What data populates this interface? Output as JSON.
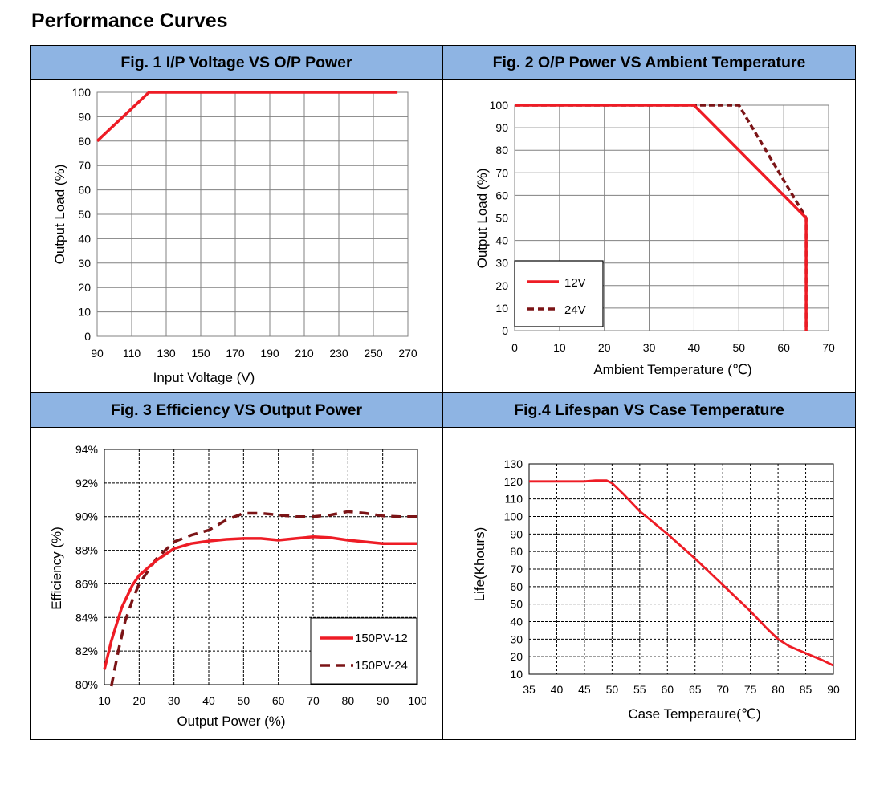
{
  "page_title": "Performance Curves",
  "chart_data": [
    {
      "type": "line",
      "title": "Fig. 1 I/P Voltage VS O/P Power",
      "xlabel": "Input Voltage (V)",
      "ylabel": "Output  Load (%)",
      "xlim": [
        90,
        270
      ],
      "ylim": [
        0,
        100
      ],
      "xticks": [
        90,
        110,
        130,
        150,
        170,
        190,
        210,
        230,
        250,
        270
      ],
      "yticks": [
        0,
        10,
        20,
        30,
        40,
        50,
        60,
        70,
        80,
        90,
        100
      ],
      "series": [
        {
          "name": "load",
          "color": "#ee1c25",
          "style": "solid",
          "x": [
            90,
            120,
            264
          ],
          "y": [
            80,
            100,
            100
          ]
        }
      ]
    },
    {
      "type": "line",
      "title": "Fig. 2 O/P Power VS Ambient Temperature",
      "xlabel": "Ambient Temperature (℃)",
      "ylabel": "Output  Load (%)",
      "xlim": [
        0,
        70
      ],
      "ylim": [
        0,
        100
      ],
      "xticks": [
        0,
        10,
        20,
        30,
        40,
        50,
        60,
        70
      ],
      "yticks": [
        0,
        10,
        20,
        30,
        40,
        50,
        60,
        70,
        80,
        90,
        100
      ],
      "legend": "bottom-left",
      "series": [
        {
          "name": "12V",
          "color": "#ee1c25",
          "style": "solid",
          "x": [
            0,
            40,
            65,
            65
          ],
          "y": [
            100,
            100,
            50,
            0
          ]
        },
        {
          "name": "24V",
          "color": "#7b1416",
          "style": "dashed",
          "x": [
            0,
            50,
            65,
            65
          ],
          "y": [
            100,
            100,
            50,
            0
          ]
        }
      ]
    },
    {
      "type": "line",
      "title": "Fig. 3 Efficiency VS Output Power",
      "xlabel": "Output Power (%)",
      "ylabel": "Efficiency (%)",
      "xlim": [
        10,
        100
      ],
      "ylim": [
        80,
        94
      ],
      "xticks": [
        10,
        20,
        30,
        40,
        50,
        60,
        70,
        80,
        90,
        100
      ],
      "yticks": [
        "80%",
        "82%",
        "84%",
        "86%",
        "88%",
        "90%",
        "92%",
        "94%"
      ],
      "legend": "bottom-right",
      "series": [
        {
          "name": "150PV-12",
          "color": "#ee1c25",
          "style": "solid",
          "x": [
            10,
            12,
            15,
            18,
            20,
            25,
            30,
            35,
            40,
            45,
            50,
            55,
            60,
            65,
            70,
            75,
            80,
            85,
            90,
            95,
            100
          ],
          "y": [
            80.9,
            82.6,
            84.6,
            85.9,
            86.5,
            87.4,
            88.1,
            88.4,
            88.55,
            88.65,
            88.7,
            88.7,
            88.6,
            88.7,
            88.8,
            88.75,
            88.6,
            88.5,
            88.4,
            88.4,
            88.4
          ]
        },
        {
          "name": "150PV-24",
          "color": "#7b1416",
          "style": "dashed",
          "x": [
            12,
            14,
            16,
            18,
            20,
            25,
            30,
            35,
            40,
            45,
            50,
            55,
            60,
            65,
            70,
            75,
            80,
            85,
            90,
            95,
            100
          ],
          "y": [
            79.9,
            82.0,
            83.8,
            85.0,
            86.0,
            87.5,
            88.5,
            88.9,
            89.2,
            89.8,
            90.2,
            90.2,
            90.1,
            90.0,
            90.0,
            90.1,
            90.3,
            90.2,
            90.05,
            90.0,
            90.0
          ]
        }
      ]
    },
    {
      "type": "line",
      "title": "Fig.4 Lifespan VS Case Temperature",
      "xlabel": "Case Temperaure(℃)",
      "ylabel": "Life(Khours)",
      "xlim": [
        35,
        90
      ],
      "ylim": [
        10,
        130
      ],
      "xticks": [
        35,
        40,
        45,
        50,
        55,
        60,
        65,
        70,
        75,
        80,
        85,
        90
      ],
      "yticks": [
        10,
        20,
        30,
        40,
        50,
        60,
        70,
        80,
        90,
        100,
        110,
        120,
        130
      ],
      "series": [
        {
          "name": "life",
          "color": "#ee1c25",
          "style": "solid",
          "x": [
            35,
            40,
            45,
            47,
            49,
            50,
            52,
            55,
            60,
            65,
            70,
            75,
            78,
            80,
            82,
            85,
            88,
            90
          ],
          "y": [
            120,
            120,
            120,
            120.5,
            120.5,
            119,
            113,
            103,
            90,
            76,
            61,
            46,
            36,
            30,
            26,
            22,
            18,
            15
          ]
        }
      ]
    }
  ]
}
